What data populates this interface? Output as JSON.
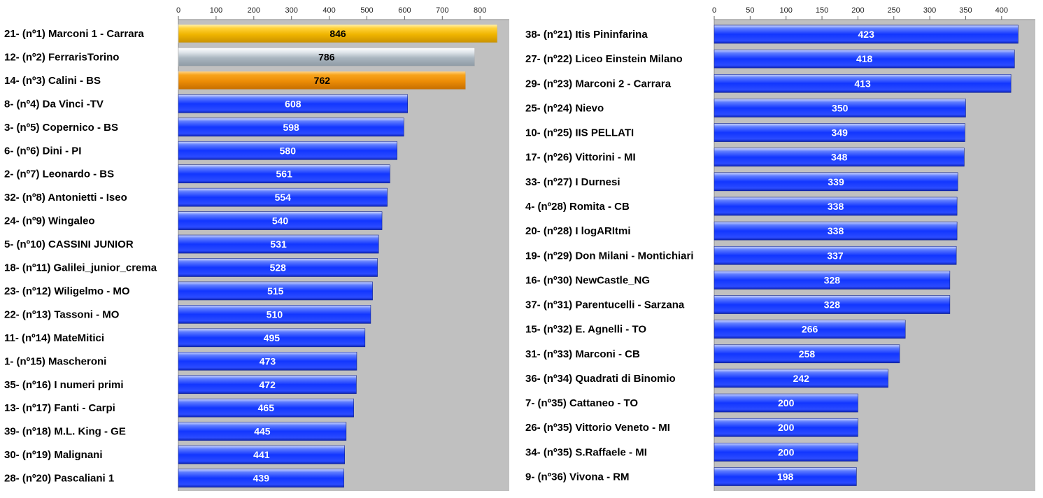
{
  "colors": {
    "plot_background": "#c0c0c0",
    "bar_blue": "#1f3cff",
    "bar_gold": "#f2b800",
    "bar_silver": "#b9c4cc",
    "bar_bronze": "#ee8e08",
    "value_text_light": "#ffffff",
    "value_text_dark": "#000000"
  },
  "chart_data": [
    {
      "type": "bar",
      "orientation": "horizontal",
      "xlim": [
        0,
        850
      ],
      "x_ticks": [
        0,
        100,
        200,
        300,
        400,
        500,
        600,
        700,
        800
      ],
      "grid": false,
      "categories": [
        "21- (nº1) Marconi 1 - Carrara",
        "12- (nº2) FerrarisTorino",
        "14- (nº3) Calini - BS",
        "8- (nº4) Da Vinci -TV",
        "3- (nº5) Copernico - BS",
        "6- (nº6) Dini - PI",
        "2- (nº7) Leonardo - BS",
        "32- (nº8) Antonietti - Iseo",
        "24- (nº9) Wingaleo",
        "5- (nº10) CASSINI JUNIOR",
        "18- (nº11) Galilei_junior_crema",
        "23- (nº12) Wiligelmo - MO",
        "22- (nº13) Tassoni - MO",
        "11- (nº14) MateMitici",
        "1- (nº15) Mascheroni",
        "35- (nº16) I numeri primi",
        "13- (nº17) Fanti - Carpi",
        "39- (nº18) M.L. King - GE",
        "30- (nº19) Malignani",
        "28- (nº20) Pascaliani 1"
      ],
      "values": [
        846,
        786,
        762,
        608,
        598,
        580,
        561,
        554,
        540,
        531,
        528,
        515,
        510,
        495,
        473,
        472,
        465,
        445,
        441,
        439
      ],
      "highlight": [
        "gold",
        "silver",
        "bronze"
      ]
    },
    {
      "type": "bar",
      "orientation": "horizontal",
      "xlim": [
        0,
        440
      ],
      "x_ticks": [
        0,
        50,
        100,
        150,
        200,
        250,
        300,
        350,
        400
      ],
      "grid": false,
      "categories": [
        "38- (nº21) Itis Pininfarina",
        "27- (nº22) Liceo Einstein Milano",
        "29- (nº23) Marconi 2 - Carrara",
        "25- (nº24) Nievo",
        "10- (nº25) IIS PELLATI",
        "17- (nº26) Vittorini - MI",
        "33- (nº27) I Durnesi",
        "4- (nº28) Romita - CB",
        "20- (nº28) I logARItmi",
        "19- (nº29) Don Milani - Montichiari",
        "16- (nº30) NewCastle_NG",
        "37- (nº31) Parentucelli - Sarzana",
        "15- (nº32) E. Agnelli - TO",
        "31- (nº33) Marconi - CB",
        "36- (nº34) Quadrati di Binomio",
        "7- (nº35) Cattaneo - TO",
        "26- (nº35) Vittorio Veneto - MI",
        "34- (nº35) S.Raffaele - MI",
        "9- (nº36) Vivona - RM"
      ],
      "values": [
        423,
        418,
        413,
        350,
        349,
        348,
        339,
        338,
        338,
        337,
        328,
        328,
        266,
        258,
        242,
        200,
        200,
        200,
        198
      ],
      "highlight": []
    }
  ]
}
